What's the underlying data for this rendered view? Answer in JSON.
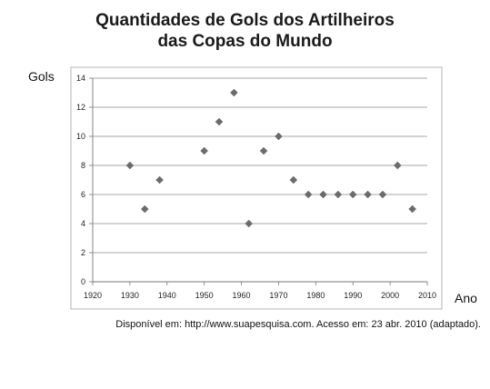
{
  "chart_data": {
    "type": "scatter",
    "title_line1": "Quantidades de Gols dos Artilheiros",
    "title_line2": "das Copas do Mundo",
    "xlabel": "Ano",
    "ylabel": "Gols",
    "xlim": [
      1920,
      2010
    ],
    "ylim": [
      0,
      14
    ],
    "xticks": [
      1920,
      1930,
      1940,
      1950,
      1960,
      1970,
      1980,
      1990,
      2000,
      2010
    ],
    "yticks": [
      0,
      2,
      4,
      6,
      8,
      10,
      12,
      14
    ],
    "grid": "horizontal",
    "marker_color": "#6b6b6b",
    "points": [
      {
        "x": 1930,
        "y": 8
      },
      {
        "x": 1934,
        "y": 5
      },
      {
        "x": 1938,
        "y": 7
      },
      {
        "x": 1950,
        "y": 9
      },
      {
        "x": 1954,
        "y": 11
      },
      {
        "x": 1958,
        "y": 13
      },
      {
        "x": 1962,
        "y": 4
      },
      {
        "x": 1966,
        "y": 9
      },
      {
        "x": 1970,
        "y": 10
      },
      {
        "x": 1974,
        "y": 7
      },
      {
        "x": 1978,
        "y": 6
      },
      {
        "x": 1982,
        "y": 6
      },
      {
        "x": 1986,
        "y": 6
      },
      {
        "x": 1990,
        "y": 6
      },
      {
        "x": 1994,
        "y": 6
      },
      {
        "x": 1998,
        "y": 6
      },
      {
        "x": 2002,
        "y": 8
      },
      {
        "x": 2006,
        "y": 5
      }
    ]
  },
  "source": "Disponível em: http://www.suapesquisa.com. Acesso em: 23 abr. 2010 (adaptado)."
}
